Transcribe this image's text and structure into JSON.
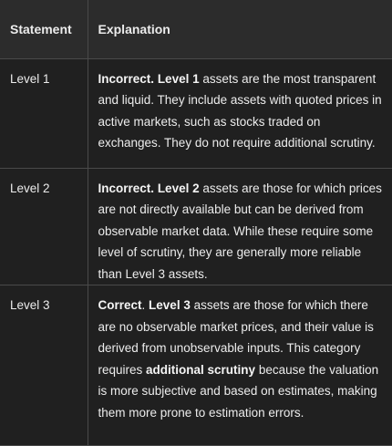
{
  "table": {
    "headers": {
      "statement": "Statement",
      "explanation": "Explanation"
    },
    "rows": [
      {
        "statement": "Level 1",
        "verdict": "Incorrect",
        "bold_subject": "Level 1",
        "text": " assets are the most transparent and liquid. They include assets with quoted prices in active markets, such as stocks traded on exchanges. They do not require additional scrutiny."
      },
      {
        "statement": "Level 2",
        "verdict": "Incorrect",
        "bold_subject": "Level 2",
        "text": " assets are those for which prices are not directly available but can be derived from observable market data. While these require some level of scrutiny, they are generally more reliable than Level 3 assets."
      },
      {
        "statement": "Level 3",
        "verdict": "Correct",
        "bold_subject": "Level 3",
        "text_before": " assets are those for which there are no observable market prices, and their value is derived from unobservable inputs. This category requires ",
        "bold_phrase": "additional scrutiny",
        "text_after": " because the valuation is more subjective and based on estimates, making them more prone to estimation errors."
      }
    ]
  },
  "colors": {
    "background": "#202020",
    "header_background": "#2c2c2c",
    "border": "#4a4a4a",
    "text": "#ececec"
  }
}
